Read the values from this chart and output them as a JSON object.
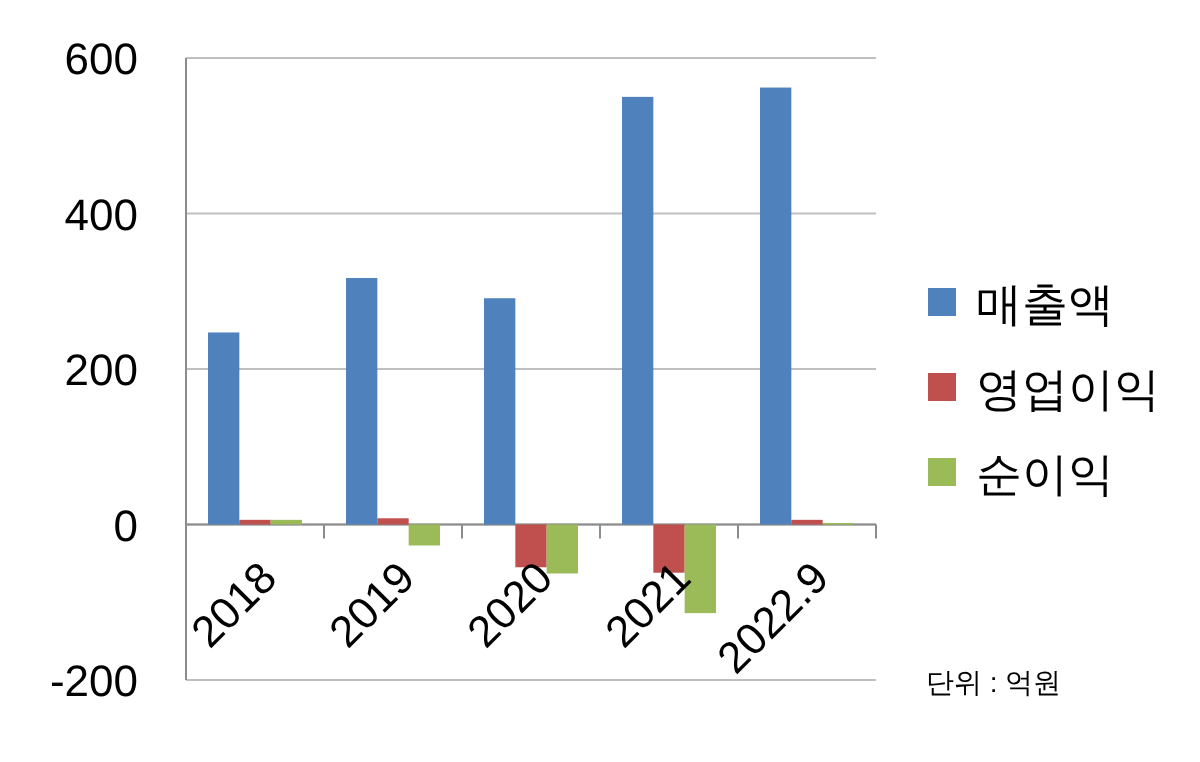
{
  "chart_data": {
    "type": "bar",
    "categories": [
      "2018",
      "2019",
      "2020",
      "2021",
      "2022.9"
    ],
    "series": [
      {
        "name": "매출액",
        "color": "#4f81bd",
        "values": [
          247,
          317,
          291,
          550,
          562
        ]
      },
      {
        "name": "영업이익",
        "color": "#c0504d",
        "values": [
          6,
          8,
          -55,
          -62,
          6
        ]
      },
      {
        "name": "순이익",
        "color": "#9bbb59",
        "values": [
          6,
          -27,
          -63,
          -114,
          2
        ]
      }
    ],
    "ylim": [
      -200,
      600
    ],
    "yticks": [
      -200,
      0,
      200,
      400,
      600
    ],
    "grid": "y",
    "legend": "right",
    "annotations": [
      "단위 : 억원"
    ]
  }
}
